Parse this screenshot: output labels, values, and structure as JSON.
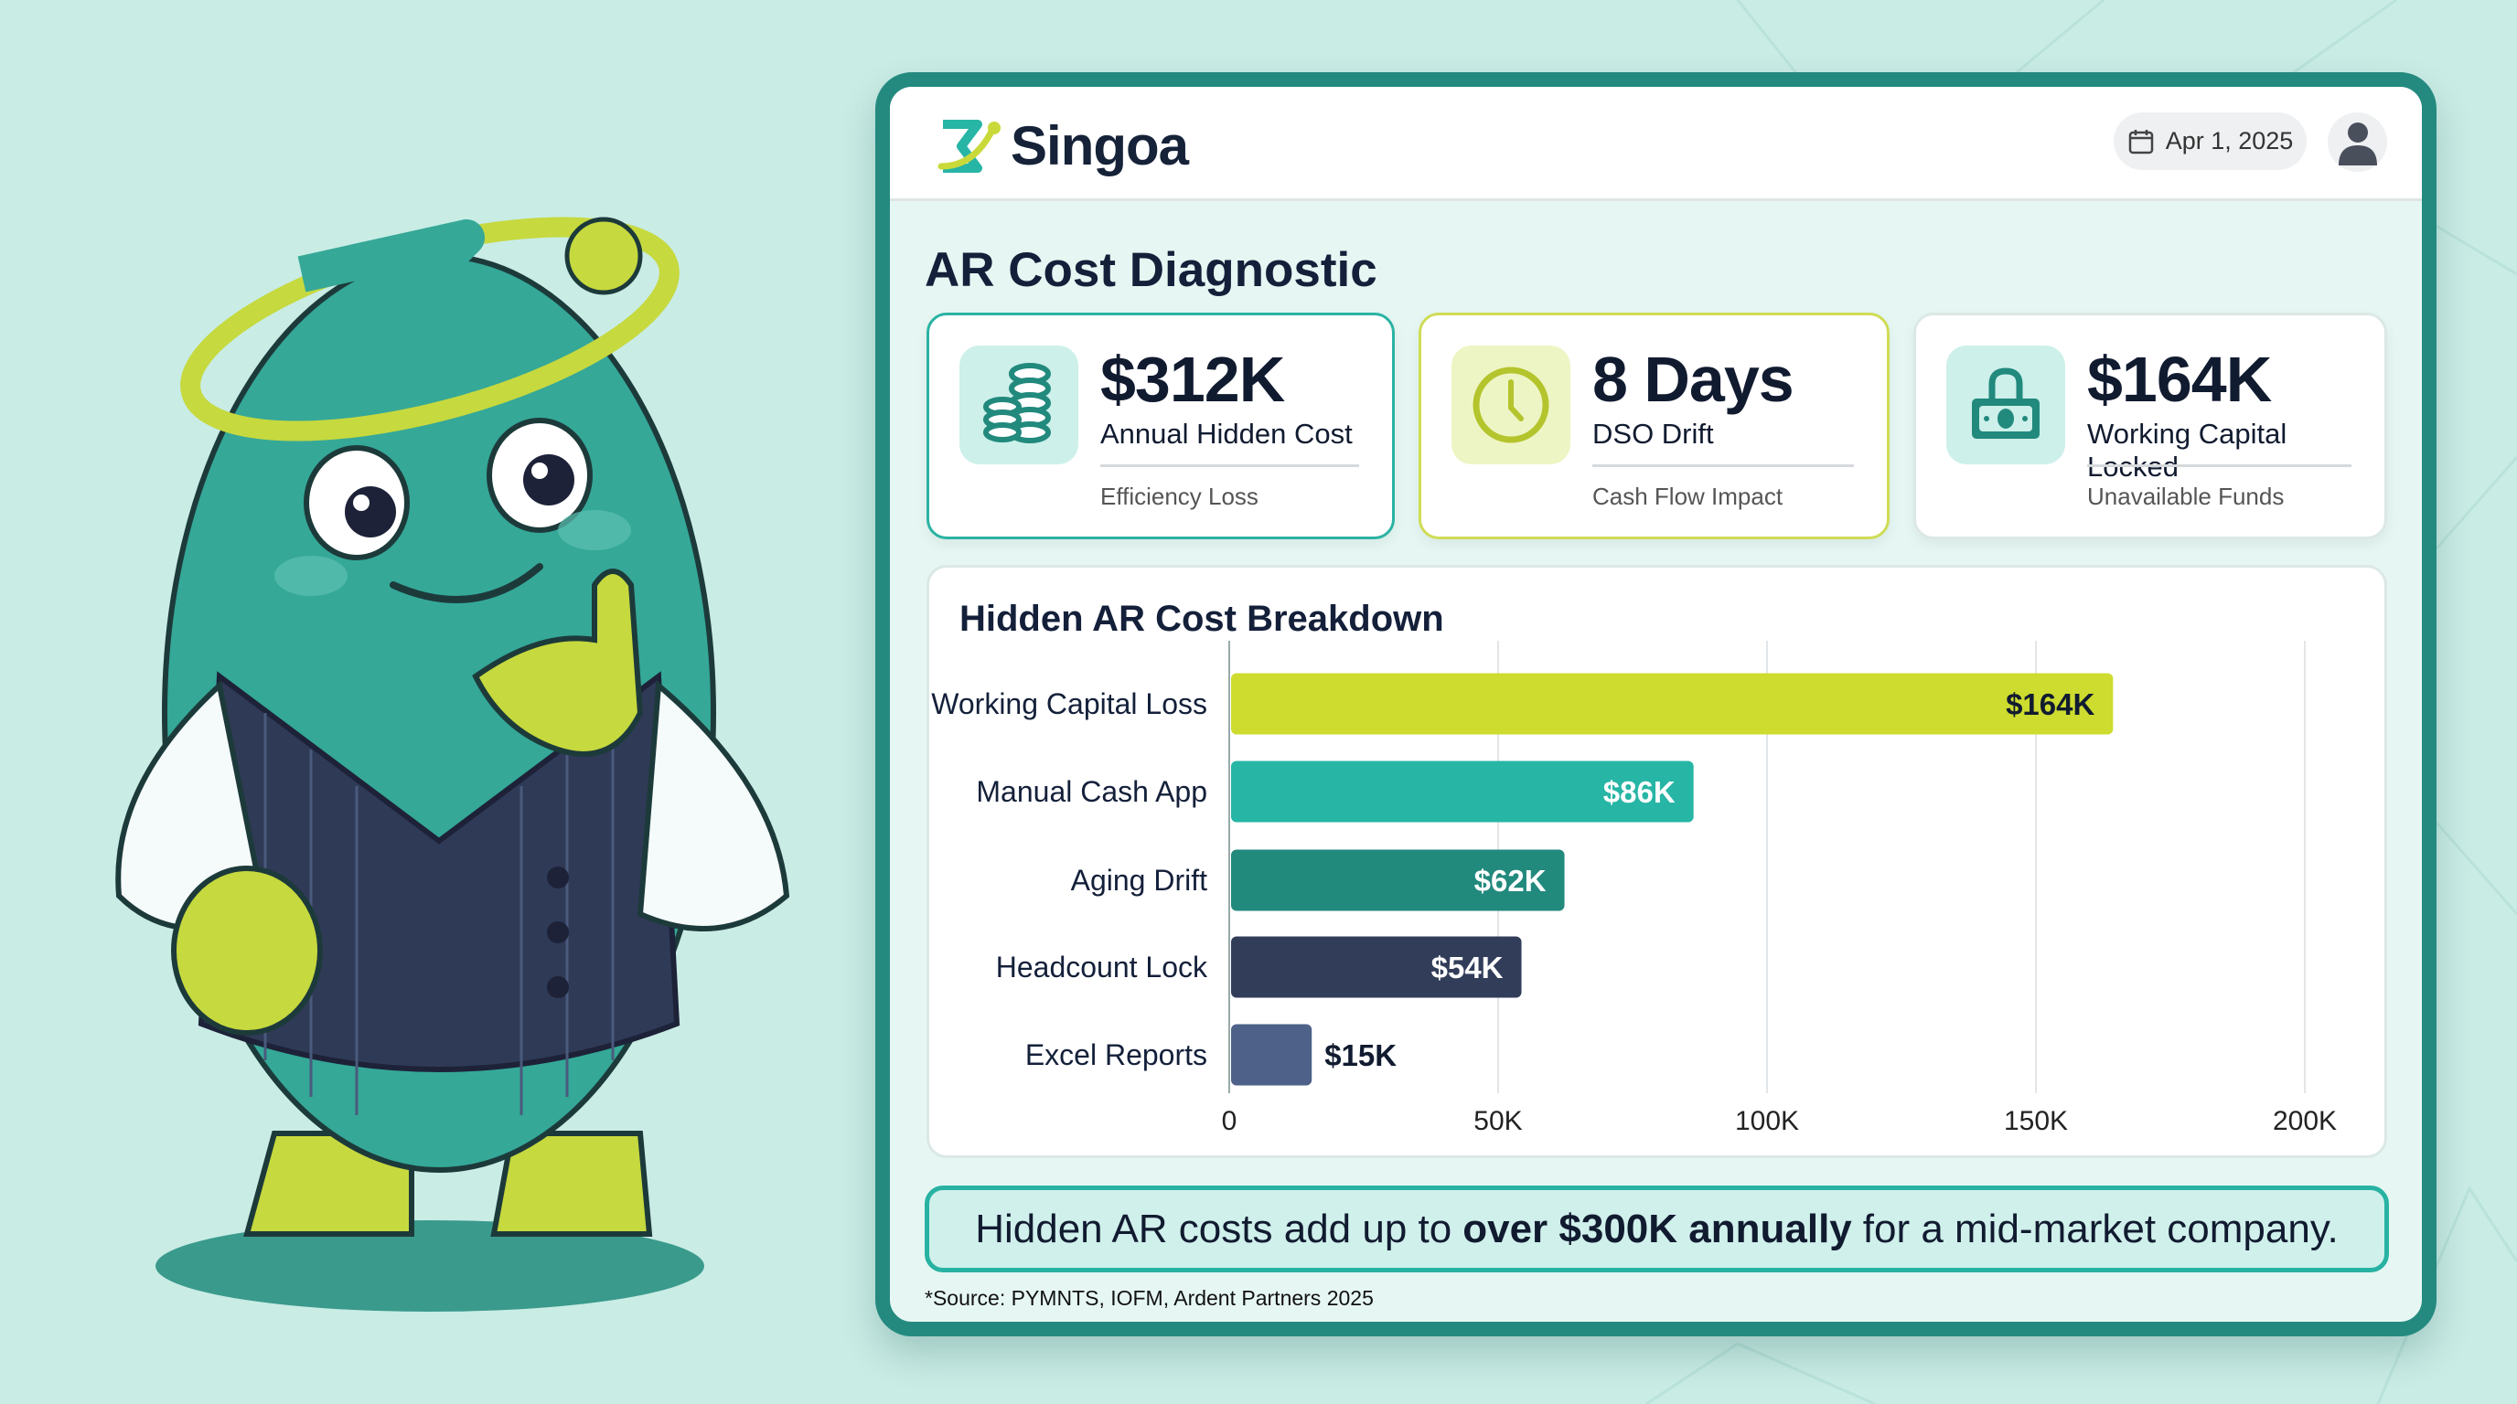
{
  "header": {
    "brand": "Singoa",
    "date": "Apr 1, 2025",
    "icons": [
      "calendar-icon",
      "user-avatar-icon"
    ]
  },
  "page_title": "AR Cost Diagnostic",
  "kpis": [
    {
      "value": "$312K",
      "label": "Annual Hidden Cost",
      "sub": "Efficiency Loss",
      "icon": "coins-icon",
      "accent": "#2bb3a3"
    },
    {
      "value": "8 Days",
      "label": "DSO Drift",
      "sub": "Cash Flow Impact",
      "icon": "clock-icon",
      "accent": "#c9d93a"
    },
    {
      "value": "$164K",
      "label": "Working Capital Locked",
      "sub": "Unavailable Funds",
      "icon": "locked-cash-icon",
      "accent": "#dbe8e6"
    }
  ],
  "chart_data": {
    "type": "bar",
    "orientation": "horizontal",
    "title": "Hidden AR Cost Breakdown",
    "categories": [
      "Working Capital Loss",
      "Manual Cash App",
      "Aging Drift",
      "Headcount Lock",
      "Excel Reports"
    ],
    "values": [
      164,
      86,
      62,
      54,
      15
    ],
    "value_labels": [
      "$164K",
      "$86K",
      "$62K",
      "$54K",
      "$15K"
    ],
    "colors": [
      "#cddc2f",
      "#27b5a5",
      "#22897d",
      "#323d5a",
      "#4d6189"
    ],
    "xlim": [
      0,
      200
    ],
    "xticks": [
      "0",
      "50K",
      "100K",
      "150K",
      "200K"
    ],
    "unit": "thousand USD",
    "grid": true
  },
  "callout": {
    "pre": "Hidden AR costs add up to",
    "bold": "over $300K annually",
    "post": "for a mid-market company."
  },
  "source": "*Source: PYMNTS, IOFM, Ardent Partners 2025"
}
